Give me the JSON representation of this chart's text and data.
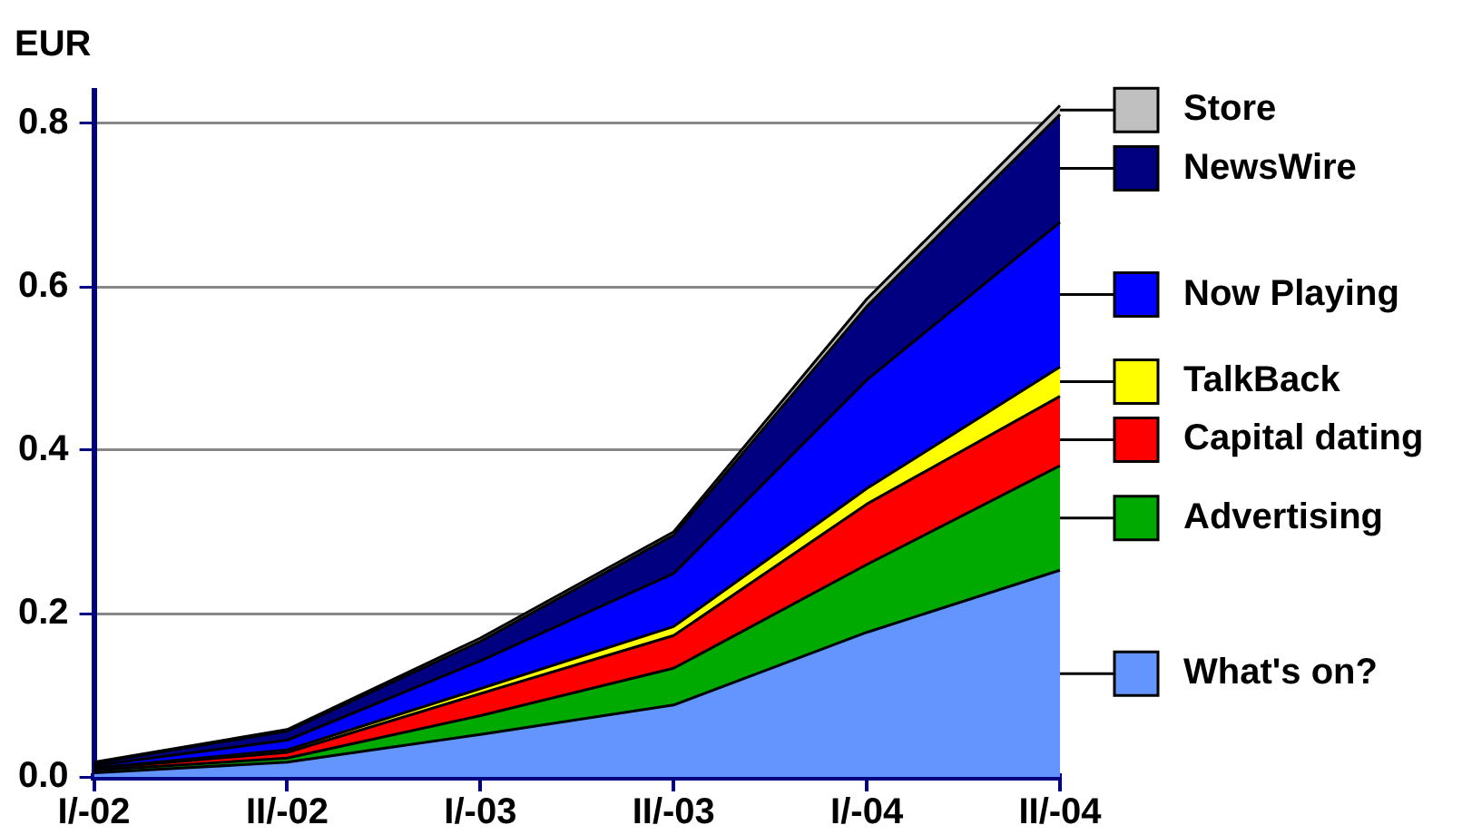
{
  "chart_data": {
    "type": "area",
    "ylabel": "EUR",
    "stacked": true,
    "categories": [
      "I/-02",
      "II/-02",
      "I/-03",
      "II/-03",
      "I/-04",
      "II/-04"
    ],
    "series": [
      {
        "name": "What's on?",
        "color": "#6495ff",
        "values": [
          0.005,
          0.018,
          0.052,
          0.088,
          0.177,
          0.253
        ]
      },
      {
        "name": "Advertising",
        "color": "#00aa00",
        "values": [
          0.003,
          0.005,
          0.023,
          0.045,
          0.083,
          0.128
        ]
      },
      {
        "name": "Capital dating",
        "color": "#ff0000",
        "values": [
          0.002,
          0.007,
          0.027,
          0.04,
          0.074,
          0.085
        ]
      },
      {
        "name": "TalkBack",
        "color": "#ffff00",
        "values": [
          0.001,
          0.003,
          0.006,
          0.011,
          0.019,
          0.036
        ]
      },
      {
        "name": "Now Playing",
        "color": "#0000ff",
        "values": [
          0.003,
          0.012,
          0.034,
          0.065,
          0.133,
          0.177
        ]
      },
      {
        "name": "NewsWire",
        "color": "#000080",
        "values": [
          0.003,
          0.011,
          0.024,
          0.047,
          0.09,
          0.132
        ]
      },
      {
        "name": "Store",
        "color": "#c0c0c0",
        "values": [
          0.001,
          0.002,
          0.004,
          0.004,
          0.009,
          0.011
        ]
      }
    ],
    "ylim": [
      0,
      0.84
    ],
    "yticks": [
      {
        "value": 0,
        "label": "0.0"
      },
      0.2,
      0.4,
      0.6,
      0.8
    ],
    "grid": "y",
    "legend": "right"
  }
}
